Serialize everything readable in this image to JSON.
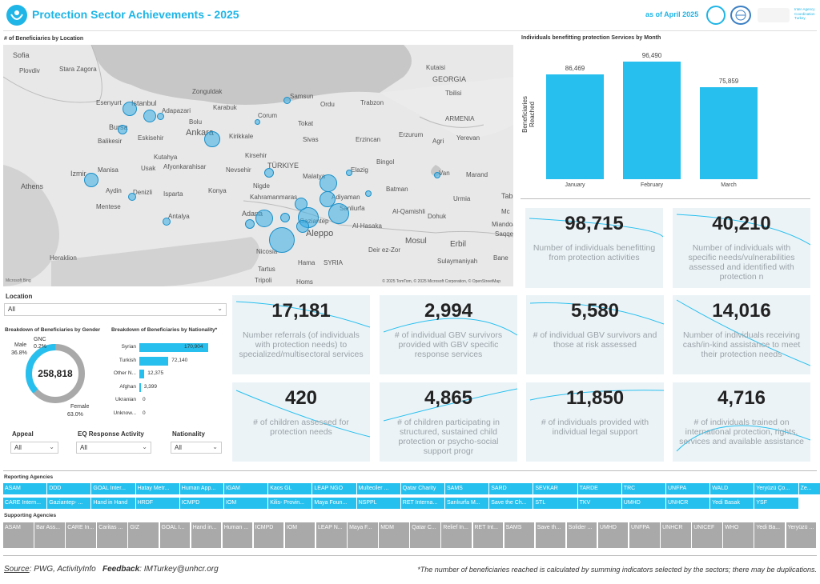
{
  "header": {
    "title": "Protection Sector Achievements - 2025",
    "date": "as of April 2025",
    "iaco": "Inter-Agency\nCoordination\nTurkey"
  },
  "map": {
    "title": "# of Beneficiaries by Location",
    "labels": [
      "Sofia",
      "Plovdiv",
      "Stara Zagora",
      "Kutaisi",
      "GEORGIA",
      "Tbilisi",
      "ARMENIA",
      "Yerevan",
      "Istanbul",
      "Adapazari",
      "Esenyurt",
      "Zonguldak",
      "Karabuk",
      "Samsun",
      "Ordu",
      "Trabzon",
      "Bursa",
      "Balikesir",
      "Eskisehir",
      "Bolu",
      "Ankara",
      "Kirikkale",
      "Corum",
      "Tokat",
      "Sivas",
      "Erzincan",
      "Erzurum",
      "Agri",
      "Kutahya",
      "Afyonkarahisar",
      "Kirsehir",
      "Izmir",
      "Manisa",
      "Usak",
      "Nevsehir",
      "TÜRKIYE",
      "Malatya",
      "Elazig",
      "Bingol",
      "Van",
      "Marand",
      "Athens",
      "Aydin",
      "Denizli",
      "Isparta",
      "Konya",
      "Nigde",
      "Kahramanmaras",
      "Adiyaman",
      "Batman",
      "Urmia",
      "Mentese",
      "Antalya",
      "Adana",
      "Gaziantep",
      "Sanliurfa",
      "Al-Qamishli",
      "Dohuk",
      "Aleppo",
      "Al-Hasaka",
      "Mosul",
      "Erbil",
      "Heraklion",
      "Nicosia",
      "Hama",
      "SYRIA",
      "Deir ez-Zor",
      "Sulaymaniyah",
      "Tartus",
      "Tripoli",
      "Homs",
      "Tab",
      "Mc",
      "Miandoab",
      "Saqqez",
      "Bane"
    ],
    "copyright": "© 2025 TomTom, © 2025 Microsoft Corporation, © OpenStreetMap",
    "brand": "Microsoft Bing"
  },
  "monthly": {
    "title": "Individuals benefitting protection Services by Month",
    "ylabel": "Beneficiaries Reached"
  },
  "chart_data": [
    {
      "type": "bar",
      "title": "Individuals benefitting protection Services by Month",
      "categories": [
        "January",
        "February",
        "March"
      ],
      "values": [
        86469,
        96490,
        75859
      ],
      "value_labels": [
        "86,469",
        "96,490",
        "75,859"
      ],
      "ylabel": "Beneficiaries Reached",
      "xlabel": ""
    },
    {
      "type": "bar",
      "title": "Breakdown of Beneficiaries by Nationality*",
      "categories": [
        "Syrian",
        "Turkish",
        "Other N...",
        "Afghan",
        "Ukranian",
        "Unknow..."
      ],
      "values": [
        170904,
        72140,
        12375,
        3399,
        0,
        0
      ],
      "value_labels": [
        "170,904",
        "72,140",
        "12,375",
        "3,399",
        "0",
        "0"
      ]
    },
    {
      "type": "pie",
      "title": "Breakdown of Beneficiaries by Gender",
      "total": "258,818",
      "slices": [
        {
          "name": "Male",
          "value": 36.8,
          "label": "36.8%"
        },
        {
          "name": "GNC",
          "value": 0.2,
          "label": "0.2%"
        },
        {
          "name": "Female",
          "value": 63.0,
          "label": "63.0%"
        }
      ]
    }
  ],
  "kpis": [
    {
      "value": "98,715",
      "text": "Number of individuals benefitting from protection activities"
    },
    {
      "value": "40,210",
      "text": "Number of individuals with specific needs/vulnerabilities assessed and identified with protection n"
    },
    {
      "value": "17,181",
      "text": "Number referrals (of individuals with protection needs) to specialized/multisectoral services"
    },
    {
      "value": "2,994",
      "text": "# of individual GBV survivors provided with GBV specific response services"
    },
    {
      "value": "5,580",
      "text": "# of individual GBV survivors and those at risk assessed"
    },
    {
      "value": "14,016",
      "text": "Number of individuals receiving cash/in-kind assistance to meet their protection needs"
    },
    {
      "value": "420",
      "text": "# of children assessed for protection needs"
    },
    {
      "value": "4,865",
      "text": "# of children participating in structured, sustained child protection or psycho-social support progr"
    },
    {
      "value": "11,850",
      "text": "# of individuals provided with individual legal support"
    },
    {
      "value": "4,716",
      "text": "# of individuals trained on international protection, rights, services and available assistance"
    }
  ],
  "filters": {
    "location_label": "Location",
    "location_value": "All",
    "appeal_label": "Appeal",
    "appeal_value": "All",
    "eq_label": "EQ Response Activity",
    "eq_value": "All",
    "nat_label": "Nationality",
    "nat_value": "All"
  },
  "gender": {
    "title": "Breakdown of Beneficiaries by Gender",
    "male": "Male",
    "male_pct": "36.8%",
    "gnc": "GNC",
    "gnc_pct": "0.2%",
    "female": "Female",
    "female_pct": "63.0%",
    "total": "258,818"
  },
  "nationality": {
    "title": "Breakdown of Beneficiaries by Nationality*"
  },
  "reporting": {
    "title": "Reporting Agencies",
    "row1": [
      "ASAM",
      "DDD",
      "GOAL Inter...",
      "Hatay Metr...",
      "Human App...",
      "IGAM",
      "Kaos GL",
      "LEAP NGO",
      "Multeciler ...",
      "Qatar Charity",
      "SAMS",
      "SARD",
      "SEVKAR",
      "TARDE",
      "TRC",
      "UNFPA",
      "WALD",
      "Yeryüzü Ço...",
      "Ze..."
    ],
    "row2": [
      "CARE Intern...",
      "Gaziantep- ...",
      "Hand in Hand",
      "HRDF",
      "ICMPD",
      "IOM",
      "Kilis- Provin...",
      "Maya Foun...",
      "NSPPL",
      "RET Interna...",
      "Sanlıurfa M...",
      "Save the Ch...",
      "STL",
      "TKV",
      "UMHD",
      "UNHCR",
      "Yedi Basak",
      "YSF"
    ]
  },
  "supporting": {
    "title": "Supporting Agencies",
    "row": [
      "ASAM",
      "Bar Ass...",
      "CARE In...",
      "Caritas ...",
      "GIZ",
      "GOAL I...",
      "Hand in...",
      "Human ...",
      "ICMPD",
      "IOM",
      "LEAP N...",
      "Maya F...",
      "MDM",
      "Qatar C...",
      "Relief In...",
      "RET Int...",
      "SAMS",
      "Save th...",
      "Solider ...",
      "UMHD",
      "UNFPA",
      "UNHCR",
      "UNICEF",
      "WHO",
      "Yedi Ba...",
      "Yeryüzü ..."
    ]
  },
  "footer": {
    "source_label": "Source",
    "source_text": ": PWG, ActivityInfo",
    "feedback_label": "Feedback",
    "feedback_text": ": IMTurkey@unhcr.org",
    "note": "*The number of beneficiaries reached is calculated by summing indicators selected by the sectors; there may be duplications."
  },
  "colors": {
    "accent": "#1fb5e6",
    "bar": "#27c0ee",
    "kpi_bg": "#ecf3f7",
    "chip_report": "#26c0ee",
    "chip_support": "#a9a9a9"
  }
}
